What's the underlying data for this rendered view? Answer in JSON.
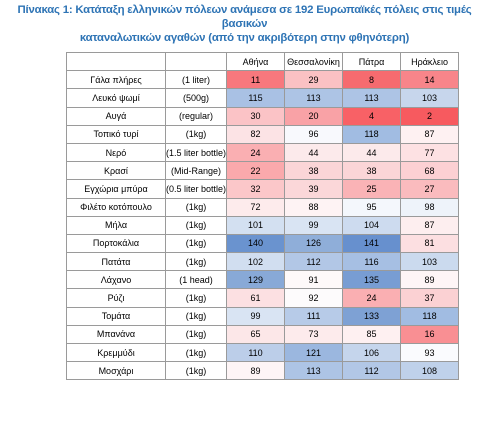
{
  "title_line1": "Πίνακας 1: Κατάταξη ελληνικών πόλεων ανάμεσα σε 192 Ευρωπαϊκές πόλεις στις τιμές βασικών",
  "title_line2": "καταναλωτικών αγαθών (από την ακριβότερη στην φθηνότερη)",
  "cities": [
    "Αθήνα",
    "Θεσσαλονίκη",
    "Πάτρα",
    "Ηράκλειο"
  ],
  "rows": [
    {
      "item": "Γάλα πλήρες",
      "unit": "(1 liter)",
      "values": [
        11,
        29,
        8,
        14
      ],
      "colors": [
        "#F8787D",
        "#FBC1C3",
        "#F66B6F",
        "#F8858A"
      ]
    },
    {
      "item": "Λευκό ψωμί",
      "unit": "(500g)",
      "values": [
        115,
        113,
        113,
        103
      ],
      "colors": [
        "#A9C1E4",
        "#ADC4E5",
        "#ADC4E5",
        "#C7D6EC"
      ]
    },
    {
      "item": "Αυγά",
      "unit": "(regular)",
      "values": [
        30,
        20,
        4,
        2
      ],
      "colors": [
        "#FBC3C6",
        "#F9A2A6",
        "#F86166",
        "#F75A5F"
      ]
    },
    {
      "item": "Τοπικό τυρί",
      "unit": "(1kg)",
      "values": [
        82,
        96,
        118,
        87
      ],
      "colors": [
        "#FCE3E5",
        "#F8F9FD",
        "#A1BCE2",
        "#FEF1F2"
      ]
    },
    {
      "item": "Νερό",
      "unit": "(1.5 liter bottle)",
      "values": [
        24,
        44,
        44,
        77
      ],
      "colors": [
        "#FAAFB2",
        "#FCEAEB",
        "#FCEAEB",
        "#FDE1E3"
      ]
    },
    {
      "item": "Κρασί",
      "unit": "(Mid-Range)",
      "values": [
        22,
        38,
        38,
        68
      ],
      "colors": [
        "#FAA9AC",
        "#FBD5D7",
        "#FBD5D7",
        "#FCD0D3"
      ]
    },
    {
      "item": "Εγχώρια μπύρα",
      "unit": "(0.5 liter bottle)",
      "values": [
        32,
        39,
        25,
        27
      ],
      "colors": [
        "#FBC7C9",
        "#FBD7D9",
        "#FAB3B6",
        "#FABBBE"
      ]
    },
    {
      "item": "Φιλέτο κοτόπουλο",
      "unit": "(1kg)",
      "values": [
        72,
        88,
        95,
        98
      ],
      "colors": [
        "#FDEBEC",
        "#FEF3F4",
        "#F4F7FC",
        "#EEF3FA"
      ]
    },
    {
      "item": "Μήλα",
      "unit": "(1kg)",
      "values": [
        101,
        99,
        104,
        87
      ],
      "colors": [
        "#D3E0F1",
        "#D9E4F3",
        "#CDDBEF",
        "#FDEEEF"
      ]
    },
    {
      "item": "Πορτοκάλια",
      "unit": "(1kg)",
      "values": [
        140,
        126,
        141,
        81
      ],
      "colors": [
        "#6A93CF",
        "#8FAED9",
        "#6790CE",
        "#FCDFE1"
      ]
    },
    {
      "item": "Πατάτα",
      "unit": "(1kg)",
      "values": [
        102,
        112,
        116,
        103
      ],
      "colors": [
        "#D1DEF0",
        "#B2C7E6",
        "#A6BFE3",
        "#CBDAEE"
      ]
    },
    {
      "item": "Λάχανο",
      "unit": "(1 head)",
      "values": [
        129,
        91,
        135,
        89
      ],
      "colors": [
        "#88A9D7",
        "#FEF9F9",
        "#789DD3",
        "#FEF5F6"
      ]
    },
    {
      "item": "Ρύζι",
      "unit": "(1kg)",
      "values": [
        61,
        92,
        24,
        37
      ],
      "colors": [
        "#FCE0E2",
        "#FDFBFC",
        "#FAAFB2",
        "#FBD1D3"
      ]
    },
    {
      "item": "Τομάτα",
      "unit": "(1kg)",
      "values": [
        99,
        111,
        133,
        118
      ],
      "colors": [
        "#D9E4F3",
        "#B7CBE8",
        "#7EA1D4",
        "#A1BCE2"
      ]
    },
    {
      "item": "Μπανάνα",
      "unit": "(1kg)",
      "values": [
        65,
        73,
        85,
        16
      ],
      "colors": [
        "#FCE7E8",
        "#FDEBEC",
        "#FEF0F1",
        "#F98F93"
      ]
    },
    {
      "item": "Κρεμμύδι",
      "unit": "(1kg)",
      "values": [
        110,
        121,
        106,
        93
      ],
      "colors": [
        "#BCCEE9",
        "#9BB7DF",
        "#C5D5EC",
        "#FAFBFE"
      ]
    },
    {
      "item": "Μοσχάρι",
      "unit": "(1kg)",
      "values": [
        89,
        113,
        112,
        108
      ],
      "colors": [
        "#FEF5F6",
        "#ADC4E5",
        "#B2C7E6",
        "#BFD1EA"
      ]
    }
  ]
}
